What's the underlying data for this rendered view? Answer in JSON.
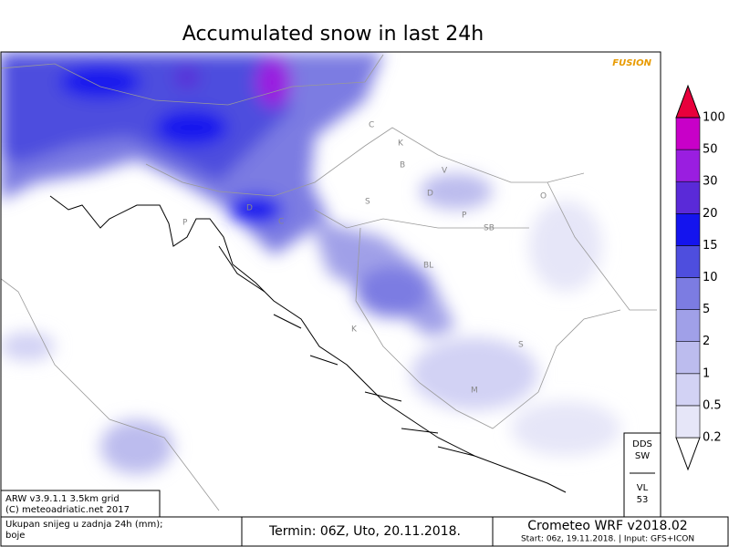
{
  "title": "Accumulated snow in last 24h",
  "brand": "FUSION",
  "colorbar": {
    "levels": [
      "0.2",
      "0.5",
      "1",
      "2",
      "5",
      "10",
      "15",
      "20",
      "30",
      "50",
      "100"
    ],
    "colors": [
      "#ffffff",
      "#e6e6f8",
      "#d2d2f4",
      "#bcbcee",
      "#a0a0e8",
      "#7c7ce2",
      "#4e4ede",
      "#1414ee",
      "#5a2ad8",
      "#9a1ee0",
      "#c800c8",
      "#e8003c"
    ]
  },
  "info_box": {
    "line1": "ARW v3.9.1.1 3.5km grid",
    "line2": "(C) meteoadriatic.net 2017"
  },
  "description": {
    "line1": "Ukupan snijeg u zadnja 24h (mm);",
    "line2": "boje"
  },
  "term": "Termin: 06Z, Uto, 20.11.2018.",
  "model": {
    "name": "Crometeo WRF v2018.02",
    "start": "Start: 06z, 19.11.2018. | Input: GFS+ICON"
  },
  "side_box": {
    "top1": "DDS",
    "top2": "SW",
    "bottom1": "VL",
    "bottom2": "53"
  },
  "map": {
    "labels": [
      "P",
      "D",
      "C",
      "K",
      "B",
      "V",
      "S",
      "D",
      "P",
      "SB",
      "BL",
      "K",
      "S",
      "M",
      "C",
      "O"
    ]
  }
}
